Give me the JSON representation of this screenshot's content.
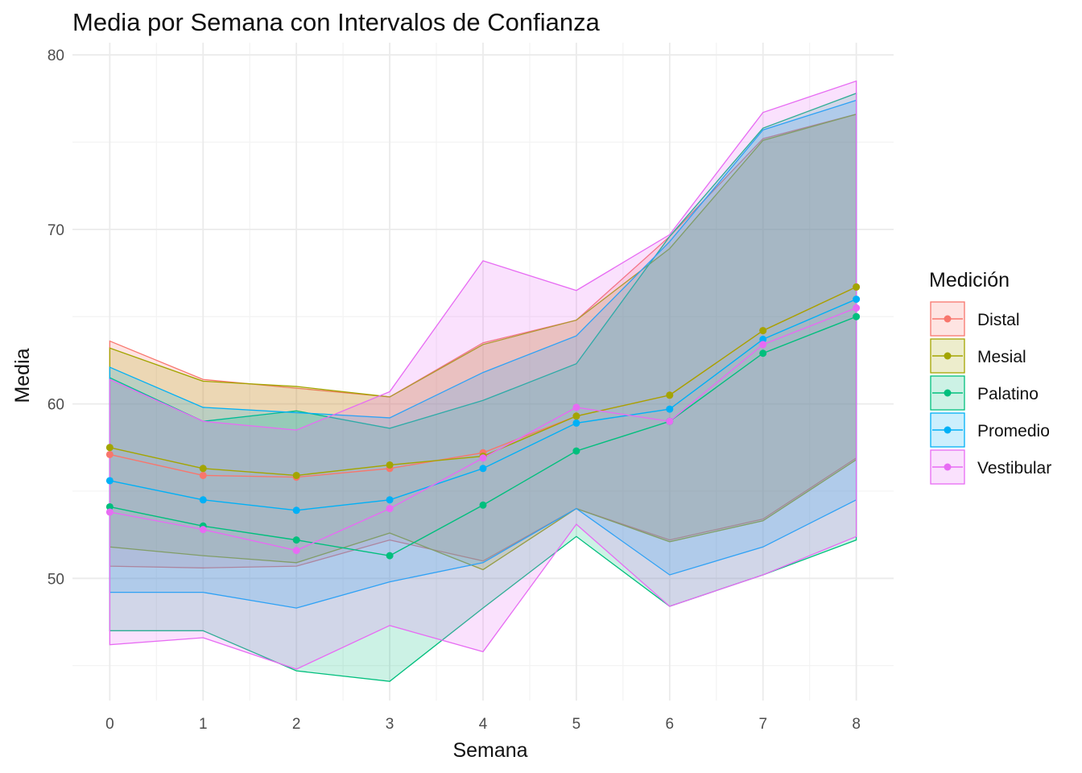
{
  "chart_data": {
    "type": "line",
    "title": "Media por Semana con Intervalos de Confianza",
    "xlabel": "Semana",
    "ylabel": "Media",
    "x": [
      0,
      1,
      2,
      3,
      4,
      5,
      6,
      7,
      8
    ],
    "xlim": [
      -0.4,
      8.4
    ],
    "ylim": [
      43.0,
      80.7
    ],
    "x_ticks": [
      "0",
      "1",
      "2",
      "3",
      "4",
      "5",
      "6",
      "7",
      "8"
    ],
    "y_ticks": [
      50,
      60,
      70,
      80
    ],
    "y_tick_labels": [
      "50",
      "60",
      "70",
      "80"
    ],
    "grid": true,
    "legend": {
      "title": "Medición",
      "position": "right"
    },
    "series": [
      {
        "name": "Distal",
        "color": "#F8766D",
        "mean": [
          57.1,
          55.9,
          55.8,
          56.3,
          57.2,
          59.3,
          60.5,
          64.2,
          66.7
        ],
        "upper": [
          63.6,
          61.4,
          60.9,
          60.4,
          63.5,
          64.8,
          69.6,
          75.2,
          76.6
        ],
        "lower": [
          50.7,
          50.6,
          50.7,
          52.2,
          51.0,
          54.0,
          52.2,
          53.4,
          56.9
        ]
      },
      {
        "name": "Mesial",
        "color": "#A3A500",
        "mean": [
          57.5,
          56.3,
          55.9,
          56.5,
          57.0,
          59.3,
          60.5,
          64.2,
          66.7
        ],
        "upper": [
          63.2,
          61.3,
          61.0,
          60.4,
          63.4,
          64.8,
          68.9,
          75.1,
          76.6
        ],
        "lower": [
          51.8,
          51.3,
          50.9,
          52.6,
          50.5,
          54.0,
          52.1,
          53.3,
          56.8
        ]
      },
      {
        "name": "Palatino",
        "color": "#00BF7D",
        "mean": [
          54.1,
          53.0,
          52.2,
          51.3,
          54.2,
          57.3,
          59.0,
          62.9,
          65.0
        ],
        "upper": [
          61.5,
          59.0,
          59.6,
          58.6,
          60.2,
          62.3,
          69.6,
          75.8,
          77.8
        ],
        "lower": [
          47.0,
          47.0,
          44.7,
          44.1,
          48.3,
          52.4,
          48.4,
          50.2,
          52.2
        ]
      },
      {
        "name": "Promedio",
        "color": "#00B0F6",
        "mean": [
          55.6,
          54.5,
          53.9,
          54.5,
          56.3,
          58.9,
          59.7,
          63.7,
          66.0
        ],
        "upper": [
          62.1,
          59.8,
          59.5,
          59.2,
          61.8,
          63.9,
          69.3,
          75.7,
          77.4
        ],
        "lower": [
          49.2,
          49.2,
          48.3,
          49.8,
          50.9,
          54.0,
          50.2,
          51.8,
          54.5
        ]
      },
      {
        "name": "Vestibular",
        "color": "#E76BF3",
        "mean": [
          53.8,
          52.8,
          51.6,
          54.0,
          56.9,
          59.8,
          59.0,
          63.4,
          65.5
        ],
        "upper": [
          61.4,
          59.0,
          58.5,
          60.7,
          68.2,
          66.5,
          69.7,
          76.7,
          78.5
        ],
        "lower": [
          46.2,
          46.6,
          44.8,
          47.3,
          45.8,
          53.1,
          48.4,
          50.2,
          52.4
        ]
      }
    ]
  }
}
